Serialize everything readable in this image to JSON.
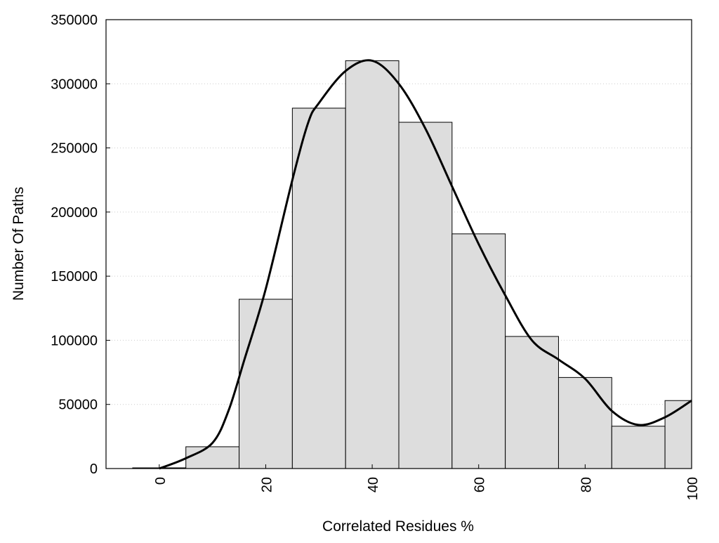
{
  "chart_data": {
    "type": "bar",
    "xlabel": "Correlated Residues %",
    "ylabel": "Number Of Paths",
    "xlim": [
      -10,
      100
    ],
    "ylim": [
      0,
      350000
    ],
    "x_ticks": [
      0,
      20,
      40,
      60,
      80,
      100
    ],
    "y_ticks": [
      0,
      50000,
      100000,
      150000,
      200000,
      250000,
      300000,
      350000
    ],
    "bar_width": 10,
    "grid": "horizontal dotted",
    "bars": [
      {
        "x": 0,
        "value": 0
      },
      {
        "x": 10,
        "value": 17000
      },
      {
        "x": 20,
        "value": 132000
      },
      {
        "x": 30,
        "value": 281000
      },
      {
        "x": 40,
        "value": 318000
      },
      {
        "x": 50,
        "value": 270000
      },
      {
        "x": 60,
        "value": 183000
      },
      {
        "x": 70,
        "value": 103000
      },
      {
        "x": 80,
        "value": 71000
      },
      {
        "x": 90,
        "value": 33000
      },
      {
        "x": 100,
        "value": 53000
      }
    ],
    "curve": {
      "x": [
        0,
        5,
        10,
        13,
        16,
        20,
        25,
        28,
        30,
        35,
        40,
        45,
        50,
        55,
        60,
        65,
        70,
        75,
        80,
        85,
        90,
        95,
        100
      ],
      "y": [
        0,
        8000,
        20000,
        45000,
        85000,
        140000,
        225000,
        270000,
        285000,
        310000,
        318000,
        300000,
        265000,
        220000,
        175000,
        135000,
        100000,
        85000,
        70000,
        45000,
        34000,
        40000,
        53000
      ]
    },
    "colors": {
      "bar_fill": "#dddddd",
      "bar_stroke": "#000000",
      "curve": "#000000",
      "grid": "#cccccc"
    }
  }
}
